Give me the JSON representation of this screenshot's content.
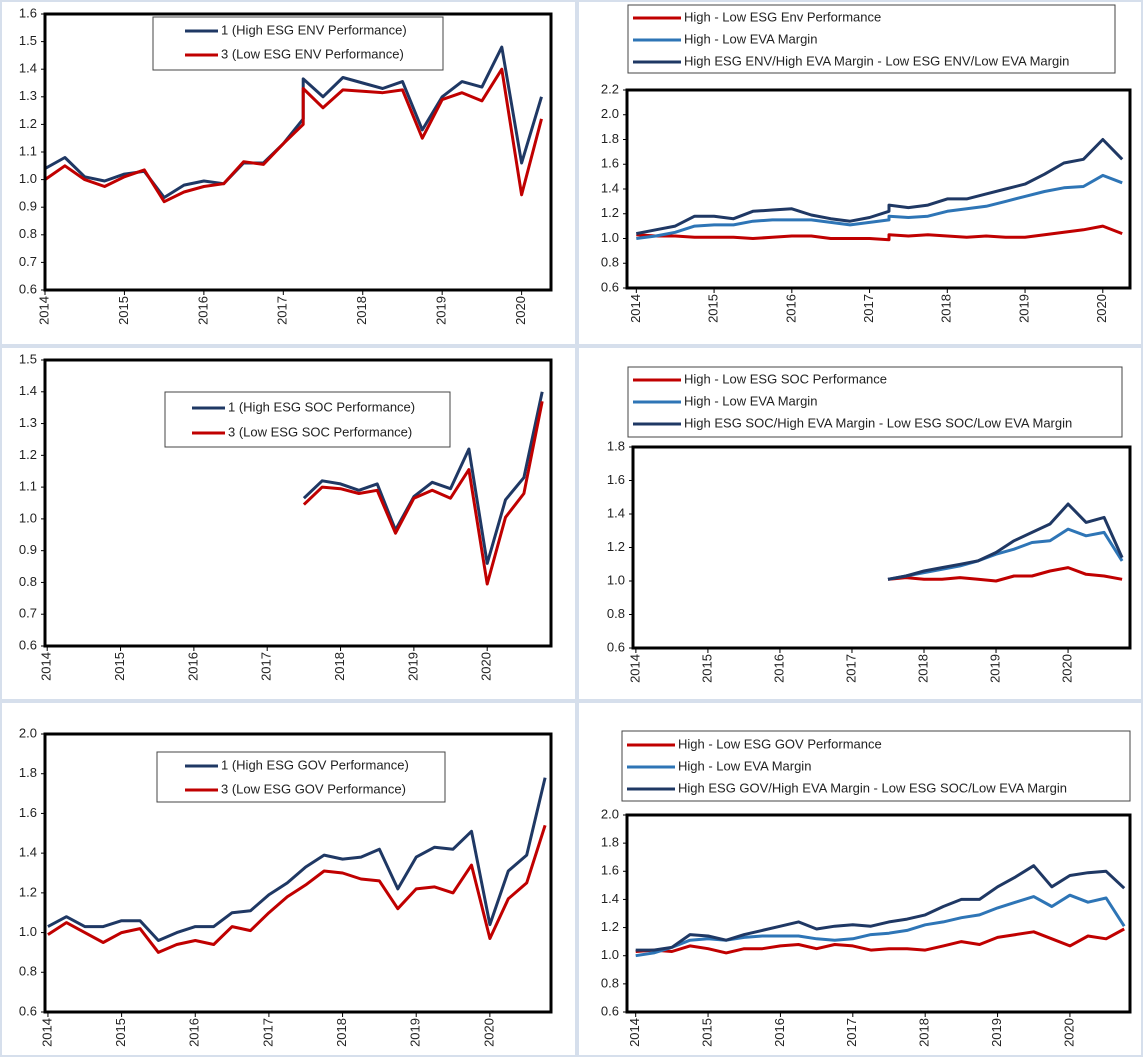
{
  "chart_data": [
    {
      "type": "line",
      "legend": "upper center",
      "x": [
        2014,
        2014.25,
        2014.5,
        2014.75,
        2015,
        2015.25,
        2015.5,
        2015.75,
        2016,
        2016.25,
        2016.5,
        2016.75,
        2017,
        2017.25,
        2017.25,
        2017.5,
        2017.75,
        2018,
        2018.25,
        2018.5,
        2018.75,
        2019,
        2019.25,
        2019.5,
        2019.75,
        2020,
        2020.25
      ],
      "series": [
        {
          "name": "1 (High ESG ENV Performance)",
          "color": "#1f3864",
          "values": [
            1.04,
            1.08,
            1.01,
            0.995,
            1.02,
            1.03,
            0.935,
            0.98,
            0.995,
            0.985,
            1.06,
            1.06,
            1.13,
            1.22,
            1.365,
            1.3,
            1.37,
            1.35,
            1.33,
            1.355,
            1.18,
            1.3,
            1.355,
            1.335,
            1.48,
            1.06,
            1.3
          ]
        },
        {
          "name": "3 (Low ESG ENV Performance)",
          "color": "#c00000",
          "values": [
            1.0,
            1.05,
            1.0,
            0.975,
            1.01,
            1.035,
            0.92,
            0.955,
            0.975,
            0.985,
            1.065,
            1.055,
            1.13,
            1.2,
            1.33,
            1.26,
            1.325,
            1.32,
            1.315,
            1.325,
            1.15,
            1.29,
            1.315,
            1.285,
            1.4,
            0.945,
            1.22
          ]
        }
      ],
      "xlim": [
        2014,
        2020.37
      ],
      "xticks": [
        2014,
        2015,
        2016,
        2017,
        2018,
        2019,
        2020
      ],
      "ylim": [
        0.6,
        1.6
      ],
      "yticks": [
        0.6,
        0.7,
        0.8,
        0.9,
        {
          "value": 1,
          "label": "1.0"
        },
        1.1,
        1.2,
        1.3,
        1.4,
        1.5,
        1.6
      ]
    },
    {
      "type": "line",
      "legend": "top",
      "x": [
        2014,
        2014.25,
        2014.5,
        2014.75,
        2015,
        2015.25,
        2015.5,
        2015.75,
        2016,
        2016.25,
        2016.5,
        2016.75,
        2017,
        2017.25,
        2017.25,
        2017.5,
        2017.75,
        2018,
        2018.25,
        2018.5,
        2018.75,
        2019,
        2019.25,
        2019.5,
        2019.75,
        2020,
        2020.25
      ],
      "series": [
        {
          "name": "High - Low ESG Env Performance",
          "color": "#c00000",
          "values": [
            1.03,
            1.02,
            1.02,
            1.01,
            1.01,
            1.01,
            1.0,
            1.01,
            1.02,
            1.02,
            1.0,
            1.0,
            1.0,
            0.99,
            1.03,
            1.02,
            1.03,
            1.02,
            1.01,
            1.02,
            1.01,
            1.01,
            1.03,
            1.05,
            1.07,
            1.1,
            1.04
          ]
        },
        {
          "name": "High - Low EVA Margin",
          "color": "#2e75b6",
          "values": [
            1.0,
            1.02,
            1.05,
            1.1,
            1.11,
            1.11,
            1.14,
            1.15,
            1.15,
            1.15,
            1.13,
            1.11,
            1.13,
            1.15,
            1.18,
            1.17,
            1.18,
            1.22,
            1.24,
            1.26,
            1.3,
            1.34,
            1.38,
            1.41,
            1.42,
            1.51,
            1.45
          ]
        },
        {
          "name": "High ESG ENV/High EVA Margin - Low ESG ENV/Low EVA Margin",
          "color": "#1f3864",
          "values": [
            1.04,
            1.07,
            1.1,
            1.18,
            1.18,
            1.16,
            1.22,
            1.23,
            1.24,
            1.19,
            1.16,
            1.14,
            1.17,
            1.22,
            1.27,
            1.25,
            1.27,
            1.32,
            1.32,
            1.36,
            1.4,
            1.44,
            1.52,
            1.61,
            1.64,
            1.8,
            1.64
          ]
        }
      ],
      "xlim": [
        2013.88,
        2020.35
      ],
      "xticks": [
        2014,
        2015,
        2016,
        2017,
        2018,
        2019,
        2020
      ],
      "ylim": [
        0.6,
        2.2
      ],
      "yticks": [
        0.6,
        0.8,
        {
          "value": 1,
          "label": "1.0"
        },
        1.2,
        1.4,
        1.6,
        1.8,
        {
          "value": 2,
          "label": "2.0"
        },
        2.2
      ]
    },
    {
      "type": "line",
      "legend": "upper center",
      "x": [
        2017.5,
        2017.75,
        2018,
        2018.25,
        2018.5,
        2018.75,
        2019,
        2019.25,
        2019.5,
        2019.75,
        2020,
        2020.25,
        2020.5,
        2020.75
      ],
      "series": [
        {
          "name": "1 (High ESG SOC Performance)",
          "color": "#1f3864",
          "values": [
            1.065,
            1.12,
            1.11,
            1.09,
            1.11,
            0.965,
            1.07,
            1.115,
            1.095,
            1.22,
            0.86,
            1.06,
            1.13,
            1.4
          ]
        },
        {
          "name": "3 (Low ESG SOC Performance)",
          "color": "#c00000",
          "values": [
            1.045,
            1.1,
            1.095,
            1.08,
            1.09,
            0.955,
            1.065,
            1.09,
            1.065,
            1.155,
            0.795,
            1.005,
            1.08,
            1.37
          ]
        }
      ],
      "xlim": [
        2013.97,
        2020.87
      ],
      "xticks": [
        2014,
        2015,
        2016,
        2017,
        2018,
        2019,
        2020
      ],
      "ylim": [
        0.6,
        1.5
      ],
      "yticks": [
        0.6,
        0.7,
        0.8,
        0.9,
        {
          "value": 1,
          "label": "1.0"
        },
        1.1,
        1.2,
        1.3,
        1.4,
        1.5
      ]
    },
    {
      "type": "line",
      "legend": "top",
      "x": [
        2017.5,
        2017.75,
        2018,
        2018.25,
        2018.5,
        2018.75,
        2019,
        2019.25,
        2019.5,
        2019.75,
        2020,
        2020.25,
        2020.5,
        2020.75
      ],
      "series": [
        {
          "name": "High - Low ESG SOC Performance",
          "color": "#c00000",
          "values": [
            1.01,
            1.02,
            1.01,
            1.01,
            1.02,
            1.01,
            1.0,
            1.03,
            1.03,
            1.06,
            1.08,
            1.04,
            1.03,
            1.01
          ]
        },
        {
          "name": "High - Low EVA Margin",
          "color": "#2e75b6",
          "values": [
            1.01,
            1.03,
            1.05,
            1.07,
            1.09,
            1.12,
            1.16,
            1.19,
            1.23,
            1.24,
            1.31,
            1.27,
            1.29,
            1.12
          ]
        },
        {
          "name": "High ESG SOC/High EVA Margin - Low ESG SOC/Low EVA Margin",
          "color": "#1f3864",
          "values": [
            1.01,
            1.03,
            1.06,
            1.08,
            1.1,
            1.12,
            1.17,
            1.24,
            1.29,
            1.34,
            1.46,
            1.35,
            1.38,
            1.14
          ]
        }
      ],
      "xlim": [
        2013.96,
        2020.86
      ],
      "xticks": [
        2014,
        2015,
        2016,
        2017,
        2018,
        2019,
        2020
      ],
      "ylim": [
        0.6,
        1.8
      ],
      "yticks": [
        0.6,
        0.8,
        {
          "value": 1,
          "label": "1.0"
        },
        1.2,
        1.4,
        1.6,
        1.8
      ]
    },
    {
      "type": "line",
      "legend": "upper center",
      "x": [
        2014,
        2014.25,
        2014.5,
        2014.75,
        2015,
        2015.25,
        2015.5,
        2015.75,
        2016,
        2016.25,
        2016.5,
        2016.75,
        2017,
        2017.25,
        2017.5,
        2017.75,
        2018,
        2018.25,
        2018.5,
        2018.75,
        2019,
        2019.25,
        2019.5,
        2019.75,
        2020,
        2020.25,
        2020.5,
        2020.75
      ],
      "series": [
        {
          "name": "1 (High ESG GOV Performance)",
          "color": "#1f3864",
          "values": [
            1.03,
            1.08,
            1.03,
            1.03,
            1.06,
            1.06,
            0.96,
            1.0,
            1.03,
            1.03,
            1.1,
            1.11,
            1.19,
            1.25,
            1.33,
            1.39,
            1.37,
            1.38,
            1.42,
            1.22,
            1.38,
            1.43,
            1.42,
            1.51,
            1.04,
            1.31,
            1.39,
            1.78
          ]
        },
        {
          "name": "3 (Low ESG GOV Performance)",
          "color": "#c00000",
          "values": [
            0.99,
            1.05,
            1.0,
            0.95,
            1.0,
            1.02,
            0.9,
            0.94,
            0.96,
            0.94,
            1.03,
            1.01,
            1.1,
            1.18,
            1.24,
            1.31,
            1.3,
            1.27,
            1.26,
            1.12,
            1.22,
            1.23,
            1.2,
            1.34,
            0.97,
            1.17,
            1.25,
            1.54
          ]
        }
      ],
      "xlim": [
        2013.96,
        2020.83
      ],
      "xticks": [
        2014,
        2015,
        2016,
        2017,
        2018,
        2019,
        2020
      ],
      "ylim": [
        0.6,
        2.0
      ],
      "yticks": [
        0.6,
        0.8,
        {
          "value": 1,
          "label": "1.0"
        },
        1.2,
        1.4,
        1.6,
        1.8,
        {
          "value": 2,
          "label": "2.0"
        }
      ]
    },
    {
      "type": "line",
      "legend": "top",
      "x": [
        2014,
        2014.25,
        2014.5,
        2014.75,
        2015,
        2015.25,
        2015.5,
        2015.75,
        2016,
        2016.25,
        2016.5,
        2016.75,
        2017,
        2017.25,
        2017.5,
        2017.75,
        2018,
        2018.25,
        2018.5,
        2018.75,
        2019,
        2019.25,
        2019.5,
        2019.75,
        2020,
        2020.25,
        2020.5,
        2020.75
      ],
      "series": [
        {
          "name": "High - Low ESG GOV Performance",
          "color": "#c00000",
          "values": [
            1.03,
            1.04,
            1.03,
            1.07,
            1.05,
            1.02,
            1.05,
            1.05,
            1.07,
            1.08,
            1.05,
            1.08,
            1.07,
            1.04,
            1.05,
            1.05,
            1.04,
            1.07,
            1.1,
            1.08,
            1.13,
            1.15,
            1.17,
            1.12,
            1.07,
            1.14,
            1.12,
            1.19
          ]
        },
        {
          "name": "High - Low EVA Margin",
          "color": "#2e75b6",
          "values": [
            1.0,
            1.02,
            1.06,
            1.11,
            1.12,
            1.11,
            1.13,
            1.14,
            1.14,
            1.14,
            1.12,
            1.11,
            1.12,
            1.15,
            1.16,
            1.18,
            1.22,
            1.24,
            1.27,
            1.29,
            1.34,
            1.38,
            1.42,
            1.35,
            1.43,
            1.38,
            1.41,
            1.21
          ]
        },
        {
          "name": "High ESG GOV/High EVA Margin - Low ESG SOC/Low EVA Margin",
          "color": "#1f3864",
          "values": [
            1.04,
            1.04,
            1.06,
            1.15,
            1.14,
            1.11,
            1.15,
            1.18,
            1.21,
            1.24,
            1.19,
            1.21,
            1.22,
            1.21,
            1.24,
            1.26,
            1.29,
            1.35,
            1.4,
            1.4,
            1.49,
            1.56,
            1.64,
            1.49,
            1.57,
            1.59,
            1.6,
            1.48
          ]
        }
      ],
      "xlim": [
        2013.88,
        2020.83
      ],
      "xticks": [
        2014,
        2015,
        2016,
        2017,
        2018,
        2019,
        2020
      ],
      "ylim": [
        0.6,
        2.0
      ],
      "yticks": [
        0.6,
        0.8,
        {
          "value": 1,
          "label": "1.0"
        },
        1.2,
        1.4,
        1.6,
        1.8,
        {
          "value": 2,
          "label": "2.0"
        }
      ]
    }
  ]
}
